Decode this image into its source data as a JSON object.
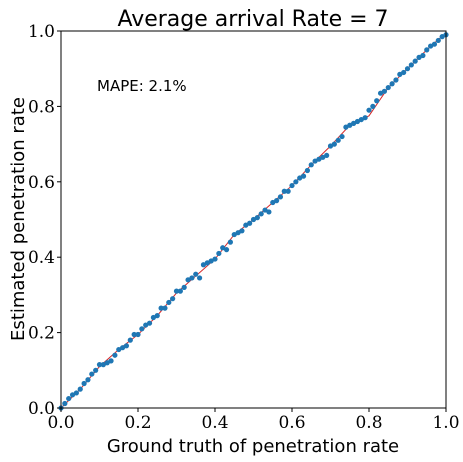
{
  "chart_data": {
    "type": "scatter",
    "title": "Average arrival Rate = 7",
    "xlabel": "Ground truth of penetration rate",
    "ylabel": "Estimated penetration rate",
    "annotation": "MAPE: 2.1%",
    "xlim": [
      0.0,
      1.0
    ],
    "ylim": [
      0.0,
      1.0
    ],
    "xticks": [
      "0.0",
      "0.2",
      "0.4",
      "0.6",
      "0.8",
      "1.0"
    ],
    "yticks": [
      "0.0",
      "0.2",
      "0.4",
      "0.6",
      "0.8",
      "1.0"
    ],
    "grid": false,
    "series": [
      {
        "kind": "points",
        "color": "#1f77b4",
        "x": [
          0.0,
          0.01,
          0.02,
          0.03,
          0.04,
          0.05,
          0.06,
          0.07,
          0.08,
          0.09,
          0.1,
          0.11,
          0.12,
          0.13,
          0.14,
          0.15,
          0.16,
          0.17,
          0.18,
          0.19,
          0.2,
          0.21,
          0.22,
          0.23,
          0.24,
          0.25,
          0.26,
          0.27,
          0.28,
          0.29,
          0.3,
          0.31,
          0.32,
          0.33,
          0.34,
          0.35,
          0.36,
          0.37,
          0.38,
          0.39,
          0.4,
          0.41,
          0.42,
          0.43,
          0.44,
          0.45,
          0.46,
          0.47,
          0.48,
          0.49,
          0.5,
          0.51,
          0.52,
          0.53,
          0.54,
          0.55,
          0.56,
          0.57,
          0.58,
          0.59,
          0.6,
          0.61,
          0.62,
          0.63,
          0.64,
          0.65,
          0.66,
          0.67,
          0.68,
          0.69,
          0.7,
          0.71,
          0.72,
          0.73,
          0.74,
          0.75,
          0.76,
          0.77,
          0.78,
          0.79,
          0.8,
          0.81,
          0.82,
          0.83,
          0.84,
          0.85,
          0.86,
          0.87,
          0.88,
          0.89,
          0.9,
          0.91,
          0.92,
          0.93,
          0.94,
          0.95,
          0.96,
          0.97,
          0.98,
          0.99,
          1.0
        ],
        "y": [
          0.0,
          0.012,
          0.025,
          0.035,
          0.04,
          0.05,
          0.065,
          0.075,
          0.09,
          0.1,
          0.115,
          0.115,
          0.12,
          0.125,
          0.14,
          0.155,
          0.16,
          0.165,
          0.18,
          0.195,
          0.195,
          0.21,
          0.22,
          0.225,
          0.24,
          0.245,
          0.265,
          0.265,
          0.28,
          0.29,
          0.31,
          0.31,
          0.32,
          0.34,
          0.345,
          0.355,
          0.345,
          0.38,
          0.385,
          0.39,
          0.395,
          0.41,
          0.425,
          0.42,
          0.44,
          0.46,
          0.465,
          0.47,
          0.485,
          0.49,
          0.5,
          0.505,
          0.515,
          0.525,
          0.52,
          0.545,
          0.55,
          0.56,
          0.575,
          0.575,
          0.59,
          0.6,
          0.61,
          0.615,
          0.63,
          0.645,
          0.655,
          0.66,
          0.665,
          0.67,
          0.695,
          0.7,
          0.71,
          0.72,
          0.745,
          0.75,
          0.755,
          0.76,
          0.765,
          0.77,
          0.79,
          0.8,
          0.815,
          0.835,
          0.84,
          0.85,
          0.86,
          0.87,
          0.885,
          0.89,
          0.9,
          0.91,
          0.92,
          0.93,
          0.935,
          0.95,
          0.96,
          0.965,
          0.975,
          0.985,
          0.99
        ]
      },
      {
        "kind": "line",
        "color": "#d62728",
        "x": [
          0.0,
          0.05,
          0.1,
          0.15,
          0.2,
          0.25,
          0.3,
          0.35,
          0.4,
          0.45,
          0.5,
          0.55,
          0.6,
          0.65,
          0.7,
          0.75,
          0.8,
          0.85,
          0.9,
          0.95,
          1.0
        ],
        "y": [
          0.0,
          0.05,
          0.11,
          0.155,
          0.195,
          0.245,
          0.305,
          0.35,
          0.395,
          0.46,
          0.5,
          0.545,
          0.59,
          0.645,
          0.695,
          0.75,
          0.775,
          0.85,
          0.9,
          0.95,
          0.995
        ]
      }
    ]
  }
}
